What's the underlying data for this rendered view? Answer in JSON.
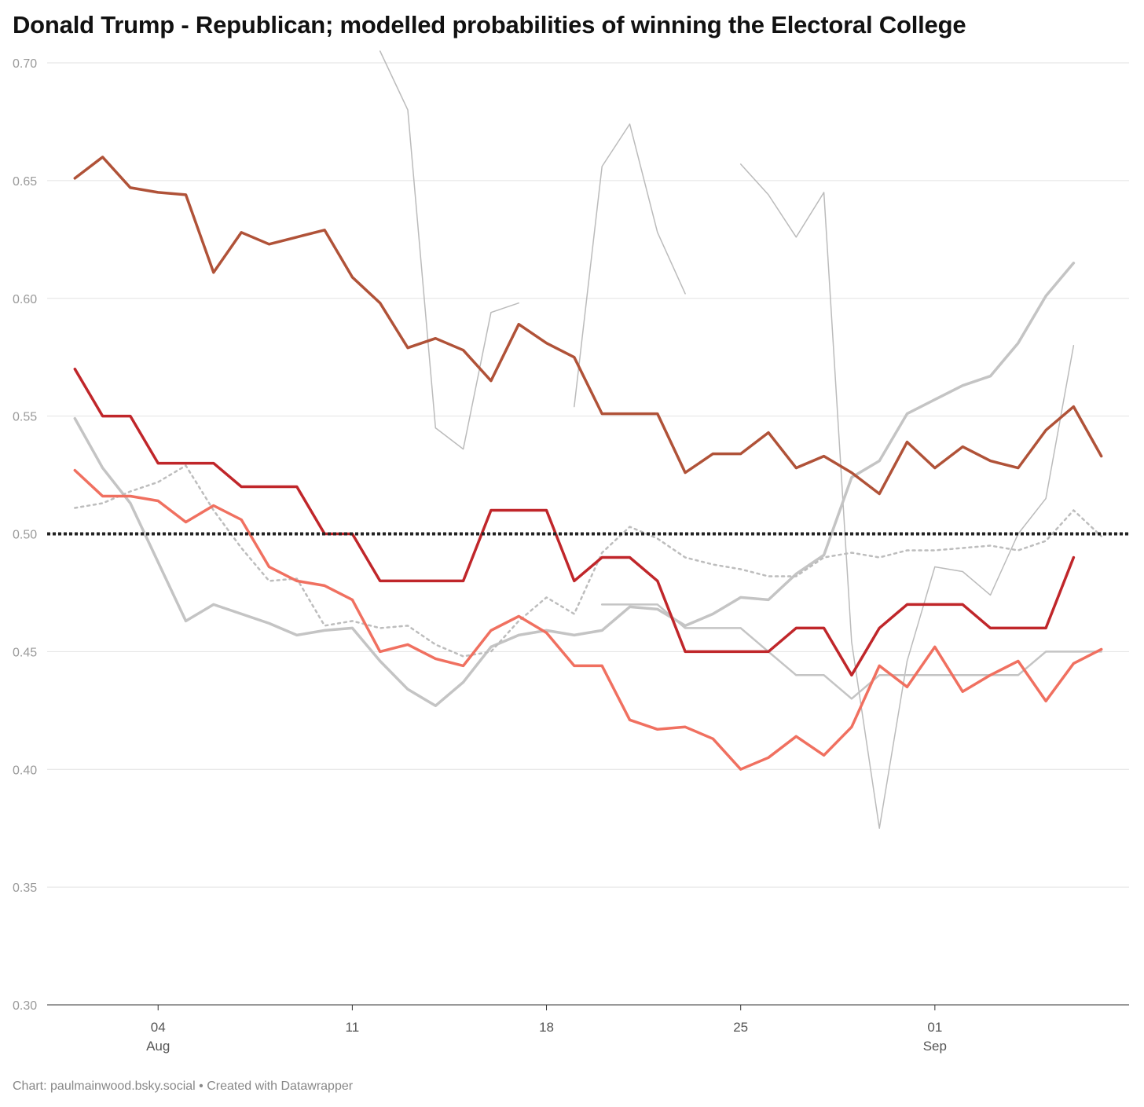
{
  "title": "Donald Trump - Republican; modelled probabilities of winning the Electoral College",
  "footer": "Chart: paulmainwood.bsky.social • Created with Datawrapper",
  "chart_data": {
    "type": "line",
    "title": "Donald Trump - Republican; modelled probabilities of winning the Electoral College",
    "xlabel": "",
    "ylabel": "",
    "ylim": [
      0.3,
      0.7
    ],
    "xlim": [
      "2024-07-31",
      "2024-09-08"
    ],
    "grid": true,
    "yticks": [
      "0.70",
      "0.65",
      "0.60",
      "0.55",
      "0.50",
      "0.45",
      "0.40",
      "0.35",
      "0.30"
    ],
    "xticks": [
      {
        "date": "2024-08-04",
        "label": "04",
        "sublabel": "Aug"
      },
      {
        "date": "2024-08-11",
        "label": "11",
        "sublabel": ""
      },
      {
        "date": "2024-08-18",
        "label": "18",
        "sublabel": ""
      },
      {
        "date": "2024-08-25",
        "label": "25",
        "sublabel": ""
      },
      {
        "date": "2024-09-01",
        "label": "01",
        "sublabel": "Sep"
      }
    ],
    "reference_line": {
      "y": 0.5,
      "style": "dotted",
      "color": "#222222"
    },
    "series": [
      {
        "color": "#bbbbbb",
        "width": 1.5,
        "dash": "",
        "points": [
          [
            "2024-08-12",
            0.705
          ],
          [
            "2024-08-13",
            0.68
          ],
          [
            "2024-08-14",
            0.545
          ],
          [
            "2024-08-15",
            0.536
          ],
          [
            "2024-08-16",
            0.594
          ],
          [
            "2024-08-17",
            0.598
          ]
        ]
      },
      {
        "color": "#bbbbbb",
        "width": 1.5,
        "dash": "",
        "points": [
          [
            "2024-08-19",
            0.554
          ],
          [
            "2024-08-20",
            0.656
          ],
          [
            "2024-08-21",
            0.674
          ],
          [
            "2024-08-22",
            0.628
          ],
          [
            "2024-08-23",
            0.602
          ]
        ]
      },
      {
        "color": "#bbbbbb",
        "width": 1.5,
        "dash": "",
        "points": [
          [
            "2024-08-25",
            0.657
          ],
          [
            "2024-08-26",
            0.644
          ],
          [
            "2024-08-27",
            0.626
          ],
          [
            "2024-08-28",
            0.645
          ],
          [
            "2024-08-29",
            0.454
          ],
          [
            "2024-08-30",
            0.375
          ],
          [
            "2024-08-31",
            0.446
          ],
          [
            "2024-09-01",
            0.486
          ],
          [
            "2024-09-02",
            0.484
          ],
          [
            "2024-09-03",
            0.474
          ],
          [
            "2024-09-04",
            0.5
          ],
          [
            "2024-09-05",
            0.515
          ],
          [
            "2024-09-06",
            0.58
          ]
        ]
      },
      {
        "color": "#c4c4c4",
        "width": 3.5,
        "dash": "",
        "points": [
          [
            "2024-08-01",
            0.549
          ],
          [
            "2024-08-02",
            0.528
          ],
          [
            "2024-08-03",
            0.513
          ],
          [
            "2024-08-04",
            0.488
          ],
          [
            "2024-08-05",
            0.463
          ],
          [
            "2024-08-06",
            0.47
          ],
          [
            "2024-08-07",
            0.466
          ],
          [
            "2024-08-08",
            0.462
          ],
          [
            "2024-08-09",
            0.457
          ],
          [
            "2024-08-10",
            0.459
          ],
          [
            "2024-08-11",
            0.46
          ],
          [
            "2024-08-12",
            0.446
          ],
          [
            "2024-08-13",
            0.434
          ],
          [
            "2024-08-14",
            0.427
          ],
          [
            "2024-08-15",
            0.437
          ],
          [
            "2024-08-16",
            0.452
          ],
          [
            "2024-08-17",
            0.457
          ],
          [
            "2024-08-18",
            0.459
          ],
          [
            "2024-08-19",
            0.457
          ],
          [
            "2024-08-20",
            0.459
          ],
          [
            "2024-08-21",
            0.469
          ],
          [
            "2024-08-22",
            0.468
          ],
          [
            "2024-08-23",
            0.461
          ],
          [
            "2024-08-24",
            0.466
          ],
          [
            "2024-08-25",
            0.473
          ],
          [
            "2024-08-26",
            0.472
          ],
          [
            "2024-08-27",
            0.483
          ],
          [
            "2024-08-28",
            0.491
          ],
          [
            "2024-08-29",
            0.524
          ],
          [
            "2024-08-30",
            0.531
          ],
          [
            "2024-08-31",
            0.551
          ],
          [
            "2024-09-01",
            0.557
          ],
          [
            "2024-09-02",
            0.563
          ],
          [
            "2024-09-03",
            0.567
          ],
          [
            "2024-09-04",
            0.581
          ],
          [
            "2024-09-05",
            0.601
          ],
          [
            "2024-09-06",
            0.615
          ]
        ]
      },
      {
        "color": "#c4c4c4",
        "width": 2.5,
        "dash": "",
        "points": [
          [
            "2024-08-20",
            0.47
          ],
          [
            "2024-08-21",
            0.47
          ],
          [
            "2024-08-22",
            0.47
          ],
          [
            "2024-08-23",
            0.46
          ],
          [
            "2024-08-24",
            0.46
          ],
          [
            "2024-08-25",
            0.46
          ],
          [
            "2024-08-26",
            0.45
          ],
          [
            "2024-08-27",
            0.44
          ],
          [
            "2024-08-28",
            0.44
          ],
          [
            "2024-08-29",
            0.43
          ],
          [
            "2024-08-30",
            0.44
          ],
          [
            "2024-08-31",
            0.44
          ],
          [
            "2024-09-01",
            0.44
          ],
          [
            "2024-09-02",
            0.44
          ],
          [
            "2024-09-03",
            0.44
          ],
          [
            "2024-09-04",
            0.44
          ],
          [
            "2024-09-05",
            0.45
          ],
          [
            "2024-09-06",
            0.45
          ],
          [
            "2024-09-07",
            0.45
          ]
        ]
      },
      {
        "color": "#bdbdbd",
        "width": 2.5,
        "dash": "3,5",
        "points": [
          [
            "2024-08-01",
            0.511
          ],
          [
            "2024-08-02",
            0.513
          ],
          [
            "2024-08-03",
            0.518
          ],
          [
            "2024-08-04",
            0.522
          ],
          [
            "2024-08-05",
            0.529
          ],
          [
            "2024-08-06",
            0.51
          ],
          [
            "2024-08-07",
            0.494
          ],
          [
            "2024-08-08",
            0.48
          ],
          [
            "2024-08-09",
            0.481
          ],
          [
            "2024-08-10",
            0.461
          ],
          [
            "2024-08-11",
            0.463
          ],
          [
            "2024-08-12",
            0.46
          ],
          [
            "2024-08-13",
            0.461
          ],
          [
            "2024-08-14",
            0.453
          ],
          [
            "2024-08-15",
            0.448
          ],
          [
            "2024-08-16",
            0.45
          ],
          [
            "2024-08-17",
            0.463
          ],
          [
            "2024-08-18",
            0.473
          ],
          [
            "2024-08-19",
            0.466
          ],
          [
            "2024-08-20",
            0.492
          ],
          [
            "2024-08-21",
            0.503
          ],
          [
            "2024-08-22",
            0.498
          ],
          [
            "2024-08-23",
            0.49
          ],
          [
            "2024-08-24",
            0.487
          ],
          [
            "2024-08-25",
            0.485
          ],
          [
            "2024-08-26",
            0.482
          ],
          [
            "2024-08-27",
            0.482
          ],
          [
            "2024-08-28",
            0.49
          ],
          [
            "2024-08-29",
            0.492
          ],
          [
            "2024-08-30",
            0.49
          ],
          [
            "2024-08-31",
            0.493
          ],
          [
            "2024-09-01",
            0.493
          ],
          [
            "2024-09-02",
            0.494
          ],
          [
            "2024-09-03",
            0.495
          ],
          [
            "2024-09-04",
            0.493
          ],
          [
            "2024-09-05",
            0.497
          ],
          [
            "2024-09-06",
            0.51
          ],
          [
            "2024-09-07",
            0.499
          ]
        ]
      },
      {
        "color": "#f07060",
        "width": 3.5,
        "dash": "",
        "points": [
          [
            "2024-08-01",
            0.527
          ],
          [
            "2024-08-02",
            0.516
          ],
          [
            "2024-08-03",
            0.516
          ],
          [
            "2024-08-04",
            0.514
          ],
          [
            "2024-08-05",
            0.505
          ],
          [
            "2024-08-06",
            0.512
          ],
          [
            "2024-08-07",
            0.506
          ],
          [
            "2024-08-08",
            0.486
          ],
          [
            "2024-08-09",
            0.48
          ],
          [
            "2024-08-10",
            0.478
          ],
          [
            "2024-08-11",
            0.472
          ],
          [
            "2024-08-12",
            0.45
          ],
          [
            "2024-08-13",
            0.453
          ],
          [
            "2024-08-14",
            0.447
          ],
          [
            "2024-08-15",
            0.444
          ],
          [
            "2024-08-16",
            0.459
          ],
          [
            "2024-08-17",
            0.465
          ],
          [
            "2024-08-18",
            0.458
          ],
          [
            "2024-08-19",
            0.444
          ],
          [
            "2024-08-20",
            0.444
          ],
          [
            "2024-08-21",
            0.421
          ],
          [
            "2024-08-22",
            0.417
          ],
          [
            "2024-08-23",
            0.418
          ],
          [
            "2024-08-24",
            0.413
          ],
          [
            "2024-08-25",
            0.4
          ],
          [
            "2024-08-26",
            0.405
          ],
          [
            "2024-08-27",
            0.414
          ],
          [
            "2024-08-28",
            0.406
          ],
          [
            "2024-08-29",
            0.418
          ],
          [
            "2024-08-30",
            0.444
          ],
          [
            "2024-08-31",
            0.435
          ],
          [
            "2024-09-01",
            0.452
          ],
          [
            "2024-09-02",
            0.433
          ],
          [
            "2024-09-03",
            0.44
          ],
          [
            "2024-09-04",
            0.446
          ],
          [
            "2024-09-05",
            0.429
          ],
          [
            "2024-09-06",
            0.445
          ],
          [
            "2024-09-07",
            0.451
          ]
        ]
      },
      {
        "color": "#c0262a",
        "width": 3.5,
        "dash": "",
        "points": [
          [
            "2024-08-01",
            0.57
          ],
          [
            "2024-08-02",
            0.55
          ],
          [
            "2024-08-03",
            0.55
          ],
          [
            "2024-08-04",
            0.53
          ],
          [
            "2024-08-05",
            0.53
          ],
          [
            "2024-08-06",
            0.53
          ],
          [
            "2024-08-07",
            0.52
          ],
          [
            "2024-08-08",
            0.52
          ],
          [
            "2024-08-09",
            0.52
          ],
          [
            "2024-08-10",
            0.5
          ],
          [
            "2024-08-11",
            0.5
          ],
          [
            "2024-08-12",
            0.48
          ],
          [
            "2024-08-13",
            0.48
          ],
          [
            "2024-08-14",
            0.48
          ],
          [
            "2024-08-15",
            0.48
          ],
          [
            "2024-08-16",
            0.51
          ],
          [
            "2024-08-17",
            0.51
          ],
          [
            "2024-08-18",
            0.51
          ],
          [
            "2024-08-19",
            0.48
          ],
          [
            "2024-08-20",
            0.49
          ],
          [
            "2024-08-21",
            0.49
          ],
          [
            "2024-08-22",
            0.48
          ],
          [
            "2024-08-23",
            0.45
          ],
          [
            "2024-08-24",
            0.45
          ],
          [
            "2024-08-25",
            0.45
          ],
          [
            "2024-08-26",
            0.45
          ],
          [
            "2024-08-27",
            0.46
          ],
          [
            "2024-08-28",
            0.46
          ],
          [
            "2024-08-29",
            0.44
          ],
          [
            "2024-08-30",
            0.46
          ],
          [
            "2024-08-31",
            0.47
          ],
          [
            "2024-09-01",
            0.47
          ],
          [
            "2024-09-02",
            0.47
          ],
          [
            "2024-09-03",
            0.46
          ],
          [
            "2024-09-04",
            0.46
          ],
          [
            "2024-09-05",
            0.46
          ],
          [
            "2024-09-06",
            0.49
          ]
        ]
      },
      {
        "color": "#b05238",
        "width": 3.5,
        "dash": "",
        "points": [
          [
            "2024-08-01",
            0.651
          ],
          [
            "2024-08-02",
            0.66
          ],
          [
            "2024-08-03",
            0.647
          ],
          [
            "2024-08-04",
            0.645
          ],
          [
            "2024-08-05",
            0.644
          ],
          [
            "2024-08-06",
            0.611
          ],
          [
            "2024-08-07",
            0.628
          ],
          [
            "2024-08-08",
            0.623
          ],
          [
            "2024-08-09",
            0.626
          ],
          [
            "2024-08-10",
            0.629
          ],
          [
            "2024-08-11",
            0.609
          ],
          [
            "2024-08-12",
            0.598
          ],
          [
            "2024-08-13",
            0.579
          ],
          [
            "2024-08-14",
            0.583
          ],
          [
            "2024-08-15",
            0.578
          ],
          [
            "2024-08-16",
            0.565
          ],
          [
            "2024-08-17",
            0.589
          ],
          [
            "2024-08-18",
            0.581
          ],
          [
            "2024-08-19",
            0.575
          ],
          [
            "2024-08-20",
            0.551
          ],
          [
            "2024-08-21",
            0.551
          ],
          [
            "2024-08-22",
            0.551
          ],
          [
            "2024-08-23",
            0.526
          ],
          [
            "2024-08-24",
            0.534
          ],
          [
            "2024-08-25",
            0.534
          ],
          [
            "2024-08-26",
            0.543
          ],
          [
            "2024-08-27",
            0.528
          ],
          [
            "2024-08-28",
            0.533
          ],
          [
            "2024-08-29",
            0.526
          ],
          [
            "2024-08-30",
            0.517
          ],
          [
            "2024-08-31",
            0.539
          ],
          [
            "2024-09-01",
            0.528
          ],
          [
            "2024-09-02",
            0.537
          ],
          [
            "2024-09-03",
            0.531
          ],
          [
            "2024-09-04",
            0.528
          ],
          [
            "2024-09-05",
            0.544
          ],
          [
            "2024-09-06",
            0.554
          ],
          [
            "2024-09-07",
            0.533
          ]
        ]
      }
    ]
  }
}
